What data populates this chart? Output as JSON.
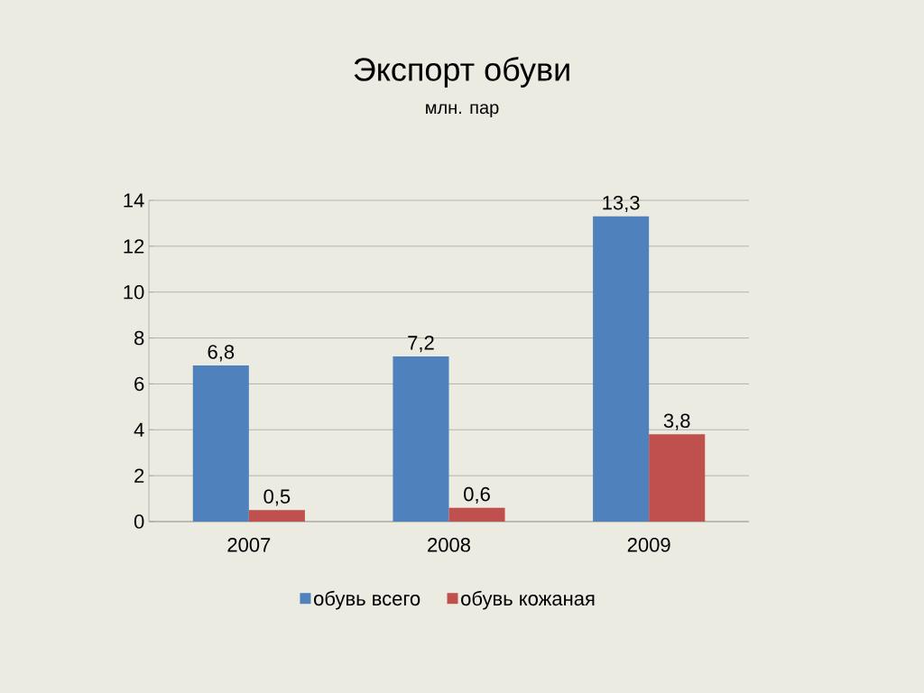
{
  "chart_data": {
    "type": "bar",
    "title": "Экспорт обуви",
    "subtitle": "млн. пар",
    "categories": [
      "2007",
      "2008",
      "2009"
    ],
    "series": [
      {
        "name": "обувь всего",
        "color": "#4f81bd",
        "values": [
          6.8,
          7.2,
          13.3
        ],
        "value_labels": [
          "6,8",
          "7,2",
          "13,3"
        ]
      },
      {
        "name": "обувь кожаная",
        "color": "#c0504d",
        "values": [
          0.5,
          0.6,
          3.8
        ],
        "value_labels": [
          "0,5",
          "0,6",
          "3,8"
        ]
      }
    ],
    "ylim": [
      0,
      14
    ],
    "yticks": [
      0,
      2,
      4,
      6,
      8,
      10,
      12,
      14
    ],
    "grid": "y",
    "legend": "bottom"
  }
}
